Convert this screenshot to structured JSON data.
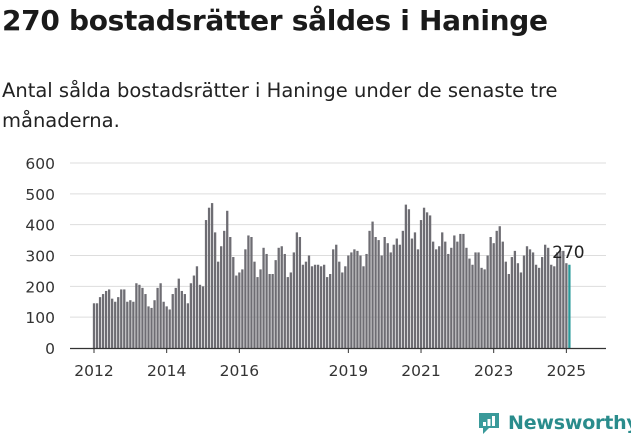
{
  "title": "270 bostadsrätter såldes i Haninge",
  "subtitle": "Antal sålda bostadsrätter i Haninge under de senaste tre månaderna.",
  "brand": {
    "name": "Newsworthy"
  },
  "colors": {
    "bar": "#6e6d73",
    "highlight": "#2a9a9a",
    "grid": "#dddddd",
    "axis": "#333333",
    "brand": "#2a8c8c"
  },
  "chart_data": {
    "type": "bar",
    "ylim": [
      0,
      600
    ],
    "yticks": [
      0,
      100,
      200,
      300,
      400,
      500,
      600
    ],
    "x_start": "2012-01",
    "xticks": [
      {
        "label": "2012",
        "month": "2012-01"
      },
      {
        "label": "2014",
        "month": "2014-01"
      },
      {
        "label": "2016",
        "month": "2016-01"
      },
      {
        "label": "2019",
        "month": "2019-01"
      },
      {
        "label": "2021",
        "month": "2021-01"
      },
      {
        "label": "2023",
        "month": "2023-01"
      },
      {
        "label": "2025",
        "month": "2025-01"
      }
    ],
    "values": [
      145,
      145,
      165,
      175,
      185,
      190,
      160,
      150,
      165,
      190,
      190,
      150,
      155,
      150,
      210,
      205,
      195,
      175,
      135,
      130,
      155,
      195,
      210,
      150,
      135,
      125,
      175,
      195,
      225,
      185,
      175,
      145,
      210,
      235,
      265,
      205,
      200,
      415,
      455,
      470,
      375,
      280,
      330,
      380,
      445,
      360,
      295,
      235,
      245,
      255,
      320,
      365,
      360,
      280,
      230,
      255,
      325,
      305,
      240,
      240,
      285,
      325,
      330,
      305,
      230,
      245,
      310,
      375,
      360,
      270,
      280,
      300,
      265,
      270,
      270,
      265,
      270,
      230,
      240,
      320,
      335,
      280,
      245,
      265,
      300,
      310,
      320,
      315,
      300,
      265,
      305,
      380,
      410,
      360,
      350,
      300,
      360,
      340,
      310,
      335,
      355,
      335,
      380,
      465,
      450,
      355,
      375,
      320,
      415,
      455,
      440,
      430,
      345,
      320,
      330,
      375,
      345,
      305,
      325,
      365,
      345,
      370,
      370,
      325,
      290,
      270,
      310,
      310,
      260,
      255,
      300,
      360,
      340,
      380,
      395,
      345,
      280,
      240,
      295,
      315,
      275,
      245,
      300,
      330,
      320,
      310,
      270,
      260,
      295,
      335,
      325,
      270,
      265,
      310,
      315,
      315,
      275,
      270
    ],
    "highlight_last": true,
    "annotation": {
      "label": "270",
      "value": 270
    }
  }
}
